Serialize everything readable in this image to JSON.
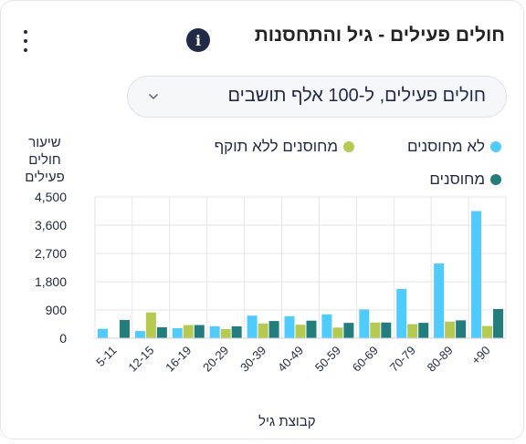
{
  "header": {
    "title": "חולים פעילים - גיל והתחסנות",
    "info_icon": "info-icon",
    "menu_icon": "kebab-menu-icon"
  },
  "dropdown": {
    "selected": "חולים פעילים, ל-100 אלף תושבים",
    "icon": "chevron-down-icon"
  },
  "colors": {
    "unvaccinated": "#50cbfd",
    "expired": "#b6ca51",
    "vaccinated": "#237d7d",
    "grid": "#e6e6e6"
  },
  "chart_data": {
    "type": "bar",
    "ylabel": "שיעור חולים פעילים",
    "xlabel": "קבוצת גיל",
    "ylim": [
      0,
      4500
    ],
    "yticks": [
      0,
      900,
      1800,
      2700,
      3600,
      4500
    ],
    "ytick_labels": [
      "0",
      "900",
      "1,800",
      "2,700",
      "3,600",
      "4,500"
    ],
    "grid": true,
    "legend_position": "top",
    "categories": [
      "5-11",
      "12-15",
      "16-19",
      "20-29",
      "30-39",
      "40-49",
      "50-59",
      "60-69",
      "70-79",
      "80-89",
      "90+"
    ],
    "category_labels": [
      "5-11",
      "12-15",
      "16-19",
      "20-29",
      "30-39",
      "40-49",
      "50-59",
      "60-69",
      "70-79",
      "80-89",
      "+90"
    ],
    "series": [
      {
        "name": "לא מחוסנים",
        "color": "#50cbfd",
        "values": [
          300,
          230,
          320,
          380,
          720,
          700,
          760,
          920,
          1570,
          2380,
          4050
        ]
      },
      {
        "name": "מחוסנים ללא תוקף",
        "color": "#b6ca51",
        "values": [
          null,
          820,
          420,
          290,
          470,
          430,
          340,
          500,
          450,
          530,
          390
        ]
      },
      {
        "name": "מחוסנים",
        "color": "#237d7d",
        "values": [
          580,
          350,
          420,
          380,
          550,
          560,
          490,
          500,
          490,
          570,
          930
        ]
      }
    ]
  }
}
